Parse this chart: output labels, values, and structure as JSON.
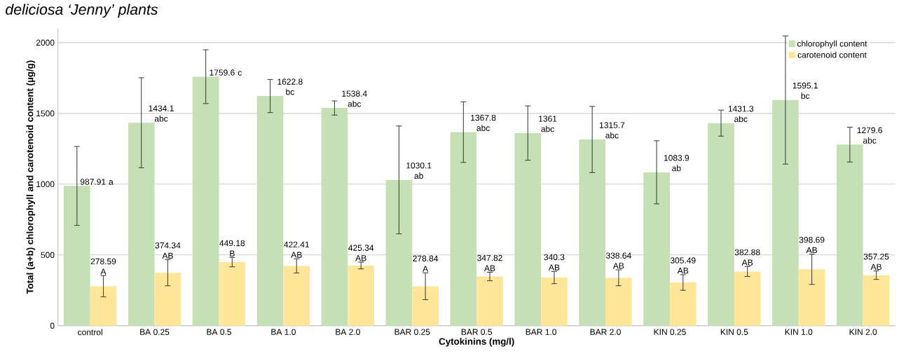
{
  "chart_data": {
    "type": "bar",
    "title": "*deliciosa ‘Jenny’ plants*",
    "xlabel": "Cytokinins (mg/l)",
    "ylabel": "Total (a+b) chlorophyll and carotenoid content (µg/g)",
    "categories": [
      "control",
      "BA 0.25",
      "BA 0.5",
      "BA 1.0",
      "BA 2.0",
      "BAR 0.25",
      "BAR 0.5",
      "BAR 1.0",
      "BAR 2.0",
      "KIN 0.25",
      "KIN 0.5",
      "KIN 1.0",
      "KIN 2.0"
    ],
    "series": [
      {
        "name": "chlorophyll content",
        "color": "#c5e0b4",
        "values": [
          987.91,
          1434.1,
          1759.6,
          1622.8,
          1538.4,
          1030.1,
          1367.8,
          1361,
          1315.7,
          1083.9,
          1431.3,
          1595.1,
          1279.6
        ],
        "errors": [
          279,
          318,
          190,
          117,
          50,
          381,
          214,
          192,
          234,
          223,
          92,
          453,
          123
        ],
        "value_labels": [
          "987.91 a",
          "1434.1 abc",
          "1759.6 c",
          "1622.8 bc",
          "1538.4 abc",
          "1030.1 ab",
          "1367.8 abc",
          "1361 abc",
          "1315.7 abc",
          "1083.9 ab",
          "1431.3 abc",
          "1595.1 bc",
          "1279.6 abc"
        ]
      },
      {
        "name": "carotenoid content",
        "color": "#ffe699",
        "values": [
          278.59,
          374.34,
          449.18,
          422.41,
          425.34,
          278.84,
          347.82,
          340.3,
          338.64,
          305.49,
          382.88,
          398.69,
          357.25
        ],
        "errors": [
          75,
          92,
          33,
          50,
          24,
          95,
          30,
          43,
          56,
          55,
          35,
          107,
          30
        ],
        "value_labels": [
          "278.59 A",
          "374.34 AB",
          "449.18 B",
          "422.41 AB",
          "425.34 AB",
          "278.84 A",
          "347.82 AB",
          "340.3 AB",
          "338.64 AB",
          "305.49 AB",
          "382.88 AB",
          "398.69 AB",
          "357.25 AB"
        ]
      }
    ],
    "ylim": [
      0,
      2100
    ],
    "yticks": [
      0,
      500,
      1000,
      1500,
      2000
    ],
    "grid": "y",
    "legend": "top right"
  }
}
